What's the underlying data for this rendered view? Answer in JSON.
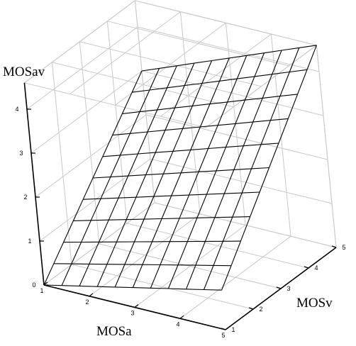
{
  "chart_data": {
    "type": "surface",
    "x_axis": {
      "label": "MOSa",
      "ticks": [
        1,
        2,
        3,
        4,
        5
      ],
      "range": [
        1,
        5
      ]
    },
    "y_axis": {
      "label": "MOSv",
      "ticks": [
        1,
        2,
        3,
        4,
        5
      ],
      "range": [
        1,
        5
      ]
    },
    "z_axis": {
      "label": "MOSav",
      "ticks": [
        0,
        1,
        2,
        3,
        4
      ],
      "range": [
        0,
        4.6
      ]
    },
    "surface": {
      "description_model": "planar surface on MOSa x MOSv grid",
      "x": [
        1,
        1.4,
        1.8,
        2.2,
        2.6,
        3.0,
        3.4,
        3.8,
        4.2,
        4.6,
        5.0
      ],
      "y": [
        1,
        1.4,
        1.8,
        2.2,
        2.6,
        3.0,
        3.4,
        3.8,
        4.2,
        4.6,
        5.0
      ],
      "corners": {
        "x1_y1": 0.0,
        "x5_y1": 0.9,
        "x1_y5": 3.0,
        "x5_y5": 4.6
      }
    },
    "grid": true
  },
  "colors": {
    "mesh": "#000000",
    "grid": "#c8c8c8",
    "axis": "#000000",
    "background": "#ffffff"
  }
}
